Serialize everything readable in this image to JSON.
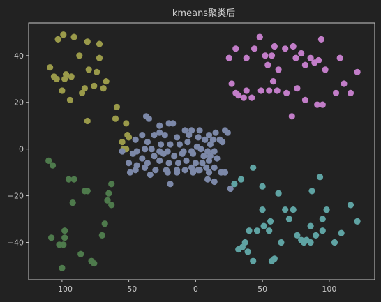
{
  "chart_data": {
    "type": "scatter",
    "title": "kmeans聚类后",
    "xlabel": "",
    "ylabel": "",
    "xlim": [
      -125,
      134
    ],
    "ylim": [
      -56,
      54
    ],
    "xticks": [
      -100,
      -50,
      0,
      50,
      100
    ],
    "yticks": [
      -40,
      -20,
      0,
      20,
      40
    ],
    "xtick_labels": [
      "−100",
      "−50",
      "0",
      "50",
      "100"
    ],
    "ytick_labels": [
      "−40",
      "−20",
      "0",
      "20",
      "40"
    ],
    "grid": false,
    "legend": "none",
    "background": "#222222",
    "series": [
      {
        "color": "#9a9a4a",
        "points": [
          [
            -103,
            47
          ],
          [
            -99,
            49
          ],
          [
            -91,
            48
          ],
          [
            -81,
            46
          ],
          [
            -87,
            40
          ],
          [
            -72,
            45
          ],
          [
            -72,
            39
          ],
          [
            -109,
            35
          ],
          [
            -106,
            31
          ],
          [
            -104,
            30
          ],
          [
            -98,
            30
          ],
          [
            -97,
            32
          ],
          [
            -93,
            31
          ],
          [
            -80,
            34
          ],
          [
            -74,
            33
          ],
          [
            -67,
            29
          ],
          [
            -69,
            26
          ],
          [
            -76,
            27
          ],
          [
            -83,
            26
          ],
          [
            -85,
            24
          ],
          [
            -100,
            25
          ],
          [
            -94,
            21
          ],
          [
            -81,
            12
          ],
          [
            -59,
            18
          ],
          [
            -60,
            13
          ],
          [
            -52,
            11
          ],
          [
            -51,
            6
          ],
          [
            -50,
            5
          ],
          [
            -55,
            3
          ],
          [
            -54,
            0
          ],
          [
            -52,
            0
          ]
        ]
      },
      {
        "color": "#7c88a8",
        "points": [
          [
            -37,
            14
          ],
          [
            -35,
            13
          ],
          [
            -27,
            10
          ],
          [
            -20,
            11
          ],
          [
            -17,
            11
          ],
          [
            -8,
            8
          ],
          [
            -3,
            8
          ],
          [
            3,
            8
          ],
          [
            10,
            6
          ],
          [
            15,
            7
          ],
          [
            22,
            8
          ],
          [
            24,
            7
          ],
          [
            -40,
            6
          ],
          [
            -31,
            6
          ],
          [
            -27,
            7
          ],
          [
            -23,
            6
          ],
          [
            -14,
            5
          ],
          [
            -5,
            6
          ],
          [
            2,
            5
          ],
          [
            7,
            4
          ],
          [
            13,
            4
          ],
          [
            18,
            4
          ],
          [
            -45,
            4
          ],
          [
            -36,
            3
          ],
          [
            -26,
            2
          ],
          [
            -19,
            2
          ],
          [
            -12,
            2
          ],
          [
            -6,
            3
          ],
          [
            1,
            1
          ],
          [
            11,
            2
          ],
          [
            20,
            3
          ],
          [
            -55,
            -1
          ],
          [
            -44,
            -1
          ],
          [
            -38,
            0
          ],
          [
            -33,
            0
          ],
          [
            -27,
            -1
          ],
          [
            -21,
            -1
          ],
          [
            -9,
            -1
          ],
          [
            -3,
            -1
          ],
          [
            4,
            0
          ],
          [
            9,
            -1
          ],
          [
            14,
            -1
          ],
          [
            -47,
            -2
          ],
          [
            -40,
            -4
          ],
          [
            -31,
            -3
          ],
          [
            -24,
            -2
          ],
          [
            -16,
            -3
          ],
          [
            -10,
            -2
          ],
          [
            -2,
            -2
          ],
          [
            6,
            -3
          ],
          [
            11,
            -3
          ],
          [
            -50,
            -6
          ],
          [
            -44,
            -7
          ],
          [
            -36,
            -6
          ],
          [
            -27,
            -5
          ],
          [
            -20,
            -6
          ],
          [
            -13,
            -6
          ],
          [
            -7,
            -5
          ],
          [
            0,
            -6
          ],
          [
            5,
            -6
          ],
          [
            10,
            -5
          ],
          [
            16,
            -4
          ],
          [
            -49,
            -10
          ],
          [
            -45,
            -9
          ],
          [
            -38,
            -8
          ],
          [
            -30,
            -9
          ],
          [
            -22,
            -9
          ],
          [
            -14,
            -9
          ],
          [
            -8,
            -9
          ],
          [
            -3,
            -8
          ],
          [
            2,
            -9
          ],
          [
            8,
            -8
          ],
          [
            14,
            -8
          ],
          [
            -34,
            -11
          ],
          [
            -21,
            -10
          ],
          [
            -14,
            -10
          ],
          [
            -2,
            -10
          ],
          [
            3,
            -9
          ],
          [
            10,
            -10
          ],
          [
            19,
            -10
          ],
          [
            22,
            -10
          ],
          [
            -19,
            -15
          ],
          [
            9,
            -13
          ],
          [
            14,
            -14
          ],
          [
            26,
            -17
          ]
        ]
      },
      {
        "color": "#c27dc8",
        "points": [
          [
            25,
            39
          ],
          [
            30,
            43
          ],
          [
            38,
            39
          ],
          [
            44,
            43
          ],
          [
            48,
            48
          ],
          [
            54,
            36
          ],
          [
            52,
            40
          ],
          [
            57,
            40
          ],
          [
            59,
            44
          ],
          [
            62,
            34
          ],
          [
            67,
            43
          ],
          [
            73,
            44
          ],
          [
            75,
            39
          ],
          [
            79,
            41
          ],
          [
            82,
            36
          ],
          [
            86,
            39
          ],
          [
            89,
            37
          ],
          [
            92,
            38
          ],
          [
            94,
            47
          ],
          [
            97,
            34
          ],
          [
            108,
            39
          ],
          [
            27,
            28
          ],
          [
            30,
            24
          ],
          [
            32,
            23
          ],
          [
            36,
            22
          ],
          [
            38,
            25
          ],
          [
            42,
            22
          ],
          [
            49,
            25
          ],
          [
            55,
            25
          ],
          [
            58,
            29
          ],
          [
            61,
            25
          ],
          [
            68,
            24
          ],
          [
            72,
            14
          ],
          [
            76,
            26
          ],
          [
            82,
            21
          ],
          [
            91,
            19
          ],
          [
            95,
            19
          ],
          [
            105,
            24
          ],
          [
            111,
            28
          ],
          [
            116,
            24
          ],
          [
            121,
            33
          ]
        ]
      },
      {
        "color": "#5fa3a3",
        "points": [
          [
            43,
            -8
          ],
          [
            34,
            -13
          ],
          [
            29,
            -15
          ],
          [
            50,
            -16
          ],
          [
            62,
            -19
          ],
          [
            87,
            -18
          ],
          [
            93,
            -12
          ],
          [
            50,
            -26
          ],
          [
            67,
            -26
          ],
          [
            73,
            -26
          ],
          [
            56,
            -31
          ],
          [
            70,
            -30
          ],
          [
            86,
            -33
          ],
          [
            95,
            -30
          ],
          [
            98,
            -26
          ],
          [
            116,
            -24
          ],
          [
            121,
            -31
          ],
          [
            40,
            -35
          ],
          [
            46,
            -35
          ],
          [
            51,
            -33
          ],
          [
            55,
            -35
          ],
          [
            76,
            -37
          ],
          [
            79,
            -39
          ],
          [
            81,
            -40
          ],
          [
            83,
            -39
          ],
          [
            86,
            -40
          ],
          [
            90,
            -37
          ],
          [
            95,
            -35
          ],
          [
            104,
            -40
          ],
          [
            109,
            -36
          ],
          [
            32,
            -43
          ],
          [
            35,
            -42
          ],
          [
            37,
            -40
          ],
          [
            39,
            -44
          ],
          [
            43,
            -48
          ],
          [
            57,
            -48
          ],
          [
            59,
            -47
          ],
          [
            64,
            -40
          ]
        ]
      },
      {
        "color": "#4e7a4c",
        "points": [
          [
            -110,
            -5
          ],
          [
            -107,
            -7
          ],
          [
            -95,
            -13
          ],
          [
            -91,
            -13
          ],
          [
            -83,
            -18
          ],
          [
            -81,
            -18
          ],
          [
            -63,
            -15
          ],
          [
            -65,
            -19
          ],
          [
            -66,
            -22
          ],
          [
            -92,
            -23
          ],
          [
            -63,
            -24
          ],
          [
            -68,
            -32
          ],
          [
            -98,
            -35
          ],
          [
            -108,
            -38
          ],
          [
            -98,
            -38
          ],
          [
            -102,
            -41
          ],
          [
            -99,
            -41
          ],
          [
            -70,
            -37
          ],
          [
            -86,
            -45
          ],
          [
            -78,
            -48
          ],
          [
            -100,
            -51
          ],
          [
            -76,
            -49
          ]
        ]
      }
    ]
  }
}
